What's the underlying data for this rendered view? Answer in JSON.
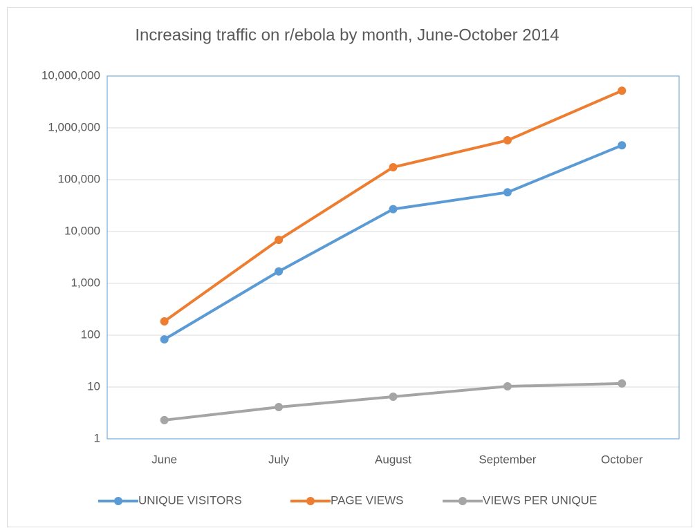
{
  "chart_data": {
    "type": "line",
    "title": "Increasing traffic on r/ebola by month, June-October 2014",
    "categories": [
      "June",
      "July",
      "August",
      "September",
      "October"
    ],
    "series": [
      {
        "name": "UNIQUE VISITORS",
        "color": "#5b9bd5",
        "values": [
          83,
          1700,
          27000,
          57000,
          460000
        ]
      },
      {
        "name": "PAGE VIEWS",
        "color": "#ed7d31",
        "values": [
          185,
          6900,
          174000,
          575000,
          5200000
        ]
      },
      {
        "name": "VIEWS PER UNIQUE",
        "color": "#a5a5a5",
        "values": [
          2.3,
          4.1,
          6.5,
          10.3,
          11.7
        ]
      }
    ],
    "yscale": "log",
    "ylim": [
      1,
      10000000
    ],
    "yticks": [
      1,
      10,
      100,
      {
        "value": 1000,
        "label": "1,000"
      },
      {
        "value": 10000,
        "label": "10,000"
      },
      {
        "value": 100000,
        "label": "100,000"
      },
      {
        "value": 1000000,
        "label": "1,000,000"
      },
      {
        "value": 10000000,
        "label": "10,000,000"
      }
    ],
    "grid": true,
    "legend": "bottom"
  }
}
